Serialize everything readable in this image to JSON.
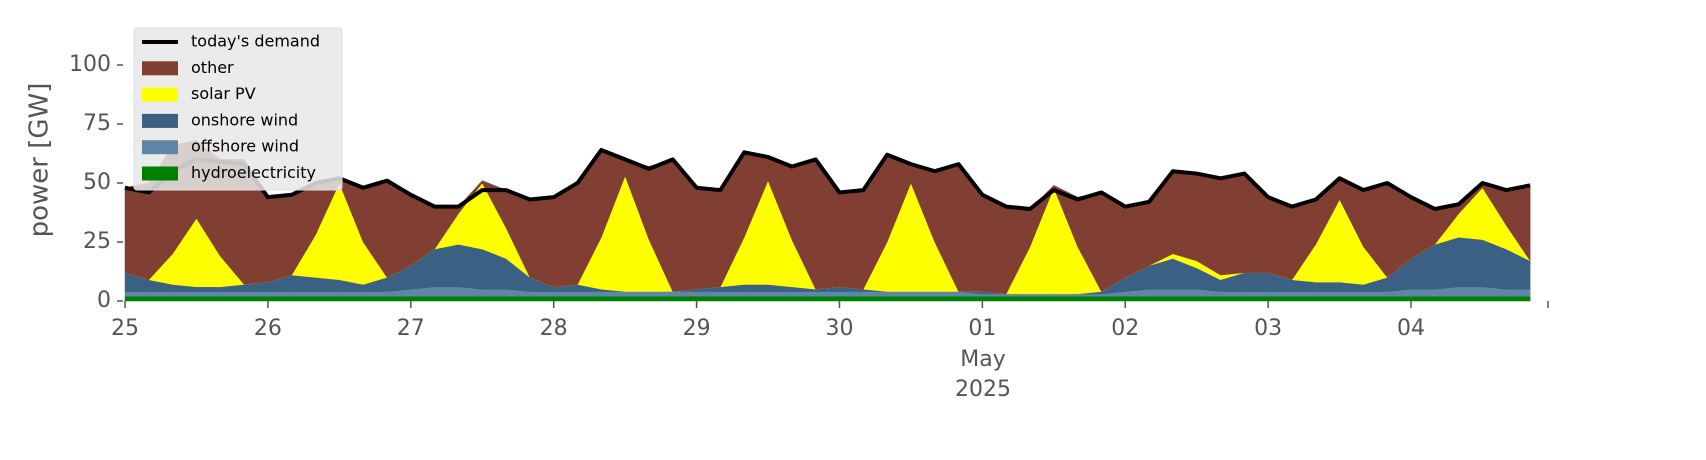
{
  "chart_data": {
    "type": "area",
    "stacked": true,
    "ylabel": "power [GW]",
    "xlim": [
      0,
      239
    ],
    "ylim": [
      0,
      115
    ],
    "yticks": [
      0,
      25,
      50,
      75,
      100
    ],
    "xticks": [
      {
        "value": 0,
        "label": "25"
      },
      {
        "value": 24,
        "label": "26"
      },
      {
        "value": 48,
        "label": "27"
      },
      {
        "value": 72,
        "label": "28"
      },
      {
        "value": 96,
        "label": "29"
      },
      {
        "value": 120,
        "label": "30"
      },
      {
        "value": 144,
        "label": "01"
      },
      {
        "value": 168,
        "label": "02"
      },
      {
        "value": 192,
        "label": "03"
      },
      {
        "value": 216,
        "label": "04"
      }
    ],
    "x_month": "May",
    "x_year": "2025",
    "legend": "upper left",
    "x": [
      0,
      4,
      8,
      12,
      16,
      20,
      24,
      28,
      32,
      36,
      40,
      44,
      48,
      52,
      56,
      60,
      64,
      68,
      72,
      76,
      80,
      84,
      88,
      92,
      96,
      100,
      104,
      108,
      112,
      116,
      120,
      124,
      128,
      132,
      136,
      140,
      144,
      148,
      152,
      156,
      160,
      164,
      168,
      172,
      176,
      180,
      184,
      188,
      192,
      196,
      200,
      204,
      208,
      212,
      216,
      220,
      224,
      228,
      232,
      236
    ],
    "series": [
      {
        "name": "today's demand",
        "type": "line",
        "color": "#000000",
        "values": [
          48,
          46,
          55,
          60,
          59,
          58,
          44,
          45,
          50,
          52,
          48,
          51,
          45,
          40,
          40,
          47,
          47,
          43,
          44,
          50,
          64,
          60,
          56,
          60,
          48,
          47,
          63,
          61,
          57,
          60,
          46,
          47,
          62,
          58,
          55,
          58,
          45,
          40,
          39,
          47,
          43,
          46,
          40,
          42,
          55,
          54,
          52,
          54,
          44,
          40,
          43,
          52,
          47,
          50,
          44,
          39,
          41,
          50,
          47,
          49
        ]
      },
      {
        "name": "other",
        "type": "area",
        "color": "#813e32",
        "values": [
          36,
          41,
          46,
          33,
          41,
          53,
          36,
          34,
          22,
          2,
          23,
          41,
          30,
          18,
          3,
          1,
          16,
          33,
          38,
          43,
          37,
          7,
          31,
          56,
          43,
          41,
          36,
          10,
          31,
          55,
          40,
          42,
          37,
          8,
          30,
          54,
          41,
          37,
          16,
          1,
          21,
          42,
          30,
          27,
          35,
          37,
          41,
          42,
          32,
          31,
          19,
          9,
          24,
          40,
          26,
          15,
          4,
          2,
          15,
          32
        ]
      },
      {
        "name": "solar PV",
        "type": "area",
        "color": "#ffff00",
        "values": [
          0,
          0,
          13,
          29,
          13,
          0,
          0,
          0,
          18,
          41,
          18,
          0,
          0,
          0,
          13,
          28,
          13,
          0,
          0,
          0,
          22,
          49,
          22,
          0,
          0,
          0,
          20,
          44,
          20,
          0,
          0,
          0,
          21,
          46,
          21,
          0,
          0,
          0,
          20,
          45,
          20,
          0,
          0,
          0,
          2,
          3,
          2,
          0,
          0,
          0,
          16,
          35,
          16,
          0,
          0,
          0,
          10,
          22,
          10,
          0
        ]
      },
      {
        "name": "onshore wind",
        "type": "area",
        "color": "#3a6083",
        "values": [
          8,
          5,
          3,
          2,
          2,
          3,
          4,
          7,
          6,
          5,
          3,
          6,
          10,
          16,
          18,
          17,
          13,
          6,
          2,
          3,
          1,
          0,
          0,
          0,
          1,
          2,
          3,
          3,
          2,
          1,
          2,
          1,
          0,
          0,
          0,
          0,
          1,
          0,
          0,
          0,
          0,
          1,
          6,
          10,
          13,
          9,
          5,
          8,
          8,
          5,
          4,
          4,
          3,
          6,
          13,
          19,
          21,
          20,
          17,
          12
        ]
      },
      {
        "name": "offshore wind",
        "type": "area",
        "color": "#5f86aa",
        "values": [
          2,
          2,
          2,
          2,
          2,
          2,
          2,
          2,
          2,
          2,
          2,
          2,
          3,
          4,
          4,
          3,
          3,
          2,
          2,
          2,
          2,
          2,
          2,
          2,
          2,
          2,
          2,
          2,
          2,
          2,
          2,
          2,
          2,
          2,
          2,
          2,
          1,
          1,
          1,
          1,
          1,
          1,
          2,
          3,
          3,
          3,
          2,
          2,
          2,
          2,
          2,
          2,
          2,
          2,
          3,
          3,
          4,
          4,
          3,
          3
        ]
      },
      {
        "name": "hydroelectricity",
        "type": "area",
        "color": "#008000",
        "values": [
          2,
          2,
          2,
          2,
          2,
          2,
          2,
          2,
          2,
          2,
          2,
          2,
          2,
          2,
          2,
          2,
          2,
          2,
          2,
          2,
          2,
          2,
          2,
          2,
          2,
          2,
          2,
          2,
          2,
          2,
          2,
          2,
          2,
          2,
          2,
          2,
          2,
          2,
          2,
          2,
          2,
          2,
          2,
          2,
          2,
          2,
          2,
          2,
          2,
          2,
          2,
          2,
          2,
          2,
          2,
          2,
          2,
          2,
          2,
          2
        ]
      }
    ]
  }
}
